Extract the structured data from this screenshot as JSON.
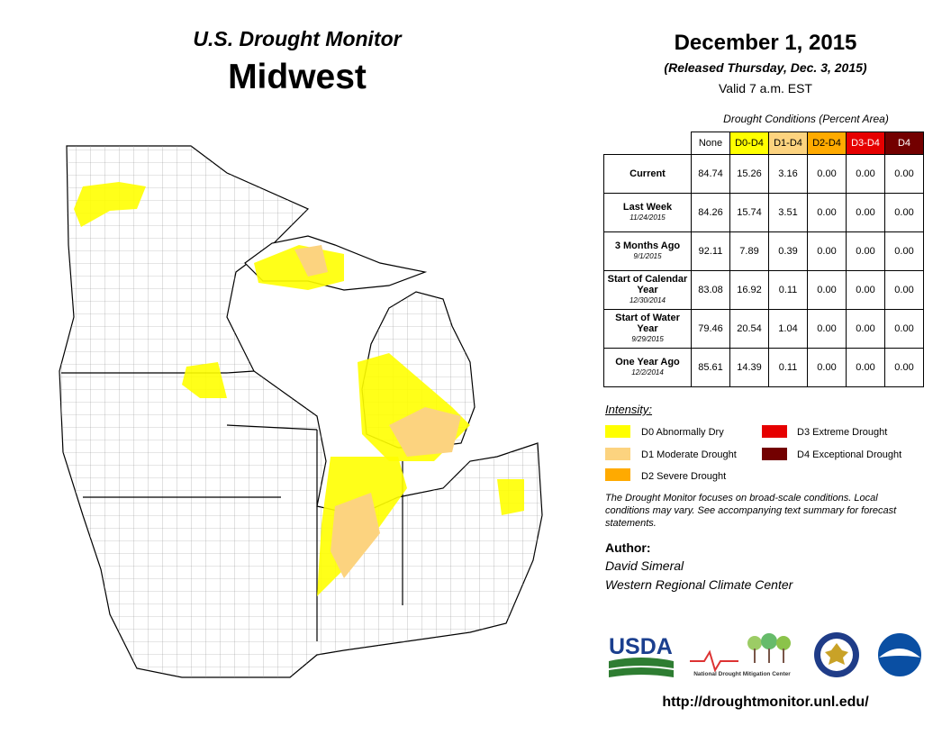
{
  "header": {
    "brand": "U.S. Drought Monitor",
    "region": "Midwest",
    "date": "December 1, 2015",
    "released": "(Released Thursday, Dec. 3, 2015)",
    "valid": "Valid  7 a.m. EST"
  },
  "table": {
    "caption": "Drought Conditions (Percent Area)",
    "columns": [
      {
        "label": "None",
        "color": "#ffffff",
        "text_color": "#000000"
      },
      {
        "label": "D0-D4",
        "color": "#ffff00",
        "text_color": "#000000"
      },
      {
        "label": "D1-D4",
        "color": "#fcd37f",
        "text_color": "#000000"
      },
      {
        "label": "D2-D4",
        "color": "#ffaa00",
        "text_color": "#000000"
      },
      {
        "label": "D3-D4",
        "color": "#e60000",
        "text_color": "#ffffff"
      },
      {
        "label": "D4",
        "color": "#730000",
        "text_color": "#ffffff"
      }
    ],
    "rows": [
      {
        "label": "Current",
        "date": "",
        "values": [
          "84.74",
          "15.26",
          "3.16",
          "0.00",
          "0.00",
          "0.00"
        ]
      },
      {
        "label": "Last Week",
        "date": "11/24/2015",
        "values": [
          "84.26",
          "15.74",
          "3.51",
          "0.00",
          "0.00",
          "0.00"
        ]
      },
      {
        "label": "3 Months Ago",
        "date": "9/1/2015",
        "values": [
          "92.11",
          "7.89",
          "0.39",
          "0.00",
          "0.00",
          "0.00"
        ]
      },
      {
        "label": "Start of Calendar Year",
        "date": "12/30/2014",
        "values": [
          "83.08",
          "16.92",
          "0.11",
          "0.00",
          "0.00",
          "0.00"
        ]
      },
      {
        "label": "Start of Water Year",
        "date": "9/29/2015",
        "values": [
          "79.46",
          "20.54",
          "1.04",
          "0.00",
          "0.00",
          "0.00"
        ]
      },
      {
        "label": "One Year Ago",
        "date": "12/2/2014",
        "values": [
          "85.61",
          "14.39",
          "0.11",
          "0.00",
          "0.00",
          "0.00"
        ]
      }
    ]
  },
  "legend": {
    "title": "Intensity:",
    "items": [
      {
        "label": "D0 Abnormally Dry",
        "color": "#ffff00"
      },
      {
        "label": "D1 Moderate Drought",
        "color": "#fcd37f"
      },
      {
        "label": "D2 Severe Drought",
        "color": "#ffaa00"
      },
      {
        "label": "D3 Extreme Drought",
        "color": "#e60000"
      },
      {
        "label": "D4 Exceptional Drought",
        "color": "#730000"
      }
    ]
  },
  "disclaimer": "The Drought Monitor focuses on broad-scale conditions. Local conditions may vary. See accompanying text summary for forecast statements.",
  "author": {
    "label": "Author:",
    "name": "David Simeral",
    "org": "Western Regional Climate Center"
  },
  "logos": {
    "usda": "USDA",
    "ndmc": "National Drought Mitigation Center"
  },
  "url": "http://droughtmonitor.unl.edu/"
}
